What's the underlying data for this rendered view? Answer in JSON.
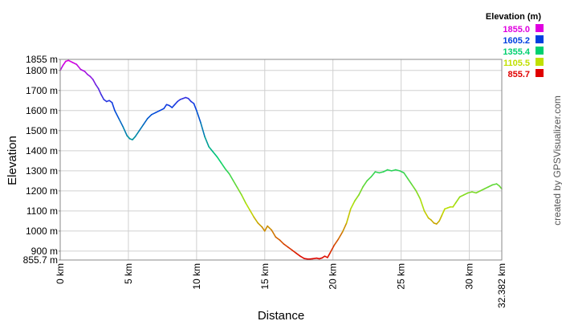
{
  "chart_data": {
    "type": "line",
    "xlabel": "Distance",
    "ylabel": "Elevation",
    "xlim": [
      0,
      32.382
    ],
    "ylim": [
      855.7,
      1855
    ],
    "grid": true,
    "x_ticks": [
      {
        "value": 0,
        "label": "0 km"
      },
      {
        "value": 5,
        "label": "5 km"
      },
      {
        "value": 10,
        "label": "10 km"
      },
      {
        "value": 15,
        "label": "15 km"
      },
      {
        "value": 20,
        "label": "20 km"
      },
      {
        "value": 25,
        "label": "25 km"
      },
      {
        "value": 30,
        "label": "30 km"
      },
      {
        "value": 32.382,
        "label": "32.382 km"
      }
    ],
    "y_ticks": [
      {
        "value": 1855,
        "label": "1855 m"
      },
      {
        "value": 1800,
        "label": "1800 m"
      },
      {
        "value": 1700,
        "label": "1700 m"
      },
      {
        "value": 1600,
        "label": "1600 m"
      },
      {
        "value": 1500,
        "label": "1500 m"
      },
      {
        "value": 1400,
        "label": "1400 m"
      },
      {
        "value": 1300,
        "label": "1300 m"
      },
      {
        "value": 1200,
        "label": "1200 m"
      },
      {
        "value": 1100,
        "label": "1100 m"
      },
      {
        "value": 1000,
        "label": "1000 m"
      },
      {
        "value": 900,
        "label": "900 m"
      },
      {
        "value": 855.7,
        "label": "855.7 m"
      }
    ],
    "legend": {
      "title": "Elevation (m)",
      "placement": "top-right",
      "entries": [
        {
          "label": "1855.0",
          "color": "#e000e0"
        },
        {
          "label": "1605.2",
          "color": "#0040e0"
        },
        {
          "label": "1355.4",
          "color": "#00d070"
        },
        {
          "label": "1105.5",
          "color": "#c0e000"
        },
        {
          "label": "855.7",
          "color": "#e00000"
        }
      ]
    },
    "series": [
      {
        "x": [
          0,
          0.2,
          0.4,
          0.6,
          0.9,
          1.2,
          1.5,
          1.8,
          2.0,
          2.2,
          2.4,
          2.6,
          2.8,
          3.0,
          3.2,
          3.4,
          3.6,
          3.8,
          4.0,
          4.3,
          4.6,
          4.9,
          5.1,
          5.3,
          5.5,
          5.8,
          6.1,
          6.4,
          6.7,
          7.0,
          7.3,
          7.6,
          7.8,
          8.0,
          8.2,
          8.4,
          8.6,
          8.8,
          9.0,
          9.2,
          9.4,
          9.6,
          9.8,
          10.0,
          10.3,
          10.6,
          10.9,
          11.2,
          11.5,
          11.8,
          12.1,
          12.4,
          12.7,
          13.0,
          13.3,
          13.6,
          13.9,
          14.2,
          14.5,
          14.8,
          15.0,
          15.2,
          15.5,
          15.8,
          16.1,
          16.4,
          16.7,
          17.0,
          17.3,
          17.6,
          17.9,
          18.2,
          18.5,
          18.8,
          19.0,
          19.2,
          19.4,
          19.6,
          19.8,
          20.1,
          20.4,
          20.7,
          21.0,
          21.3,
          21.6,
          21.9,
          22.2,
          22.5,
          22.8,
          23.1,
          23.4,
          23.7,
          24.0,
          24.3,
          24.6,
          24.9,
          25.2,
          25.5,
          25.8,
          26.1,
          26.4,
          26.7,
          27.0,
          27.2,
          27.4,
          27.6,
          27.8,
          28.0,
          28.2,
          28.4,
          28.6,
          28.8,
          29.0,
          29.3,
          29.6,
          29.9,
          30.2,
          30.5,
          30.8,
          31.1,
          31.4,
          31.7,
          32.0,
          32.2,
          32.382
        ],
        "y": [
          1800,
          1825,
          1845,
          1850,
          1840,
          1830,
          1805,
          1795,
          1780,
          1770,
          1755,
          1730,
          1710,
          1680,
          1655,
          1645,
          1650,
          1640,
          1600,
          1560,
          1520,
          1475,
          1460,
          1455,
          1470,
          1500,
          1530,
          1560,
          1580,
          1590,
          1600,
          1610,
          1630,
          1625,
          1615,
          1630,
          1645,
          1655,
          1660,
          1665,
          1660,
          1645,
          1635,
          1600,
          1540,
          1470,
          1420,
          1395,
          1370,
          1340,
          1310,
          1285,
          1250,
          1215,
          1180,
          1140,
          1105,
          1070,
          1040,
          1020,
          1000,
          1025,
          1005,
          970,
          955,
          935,
          920,
          905,
          890,
          875,
          863,
          860,
          862,
          865,
          862,
          866,
          875,
          868,
          892,
          930,
          960,
          995,
          1040,
          1110,
          1150,
          1180,
          1220,
          1250,
          1270,
          1295,
          1290,
          1295,
          1305,
          1300,
          1305,
          1300,
          1290,
          1260,
          1230,
          1200,
          1160,
          1100,
          1065,
          1055,
          1040,
          1035,
          1050,
          1080,
          1110,
          1115,
          1120,
          1120,
          1140,
          1170,
          1180,
          1190,
          1195,
          1190,
          1200,
          1210,
          1220,
          1230,
          1235,
          1225,
          1210
        ],
        "color_scale": [
          "#e000e0",
          "#0040e0",
          "#00d070",
          "#c0e000",
          "#e00000"
        ]
      }
    ]
  },
  "credit": "created by GPSVisualizer.com"
}
